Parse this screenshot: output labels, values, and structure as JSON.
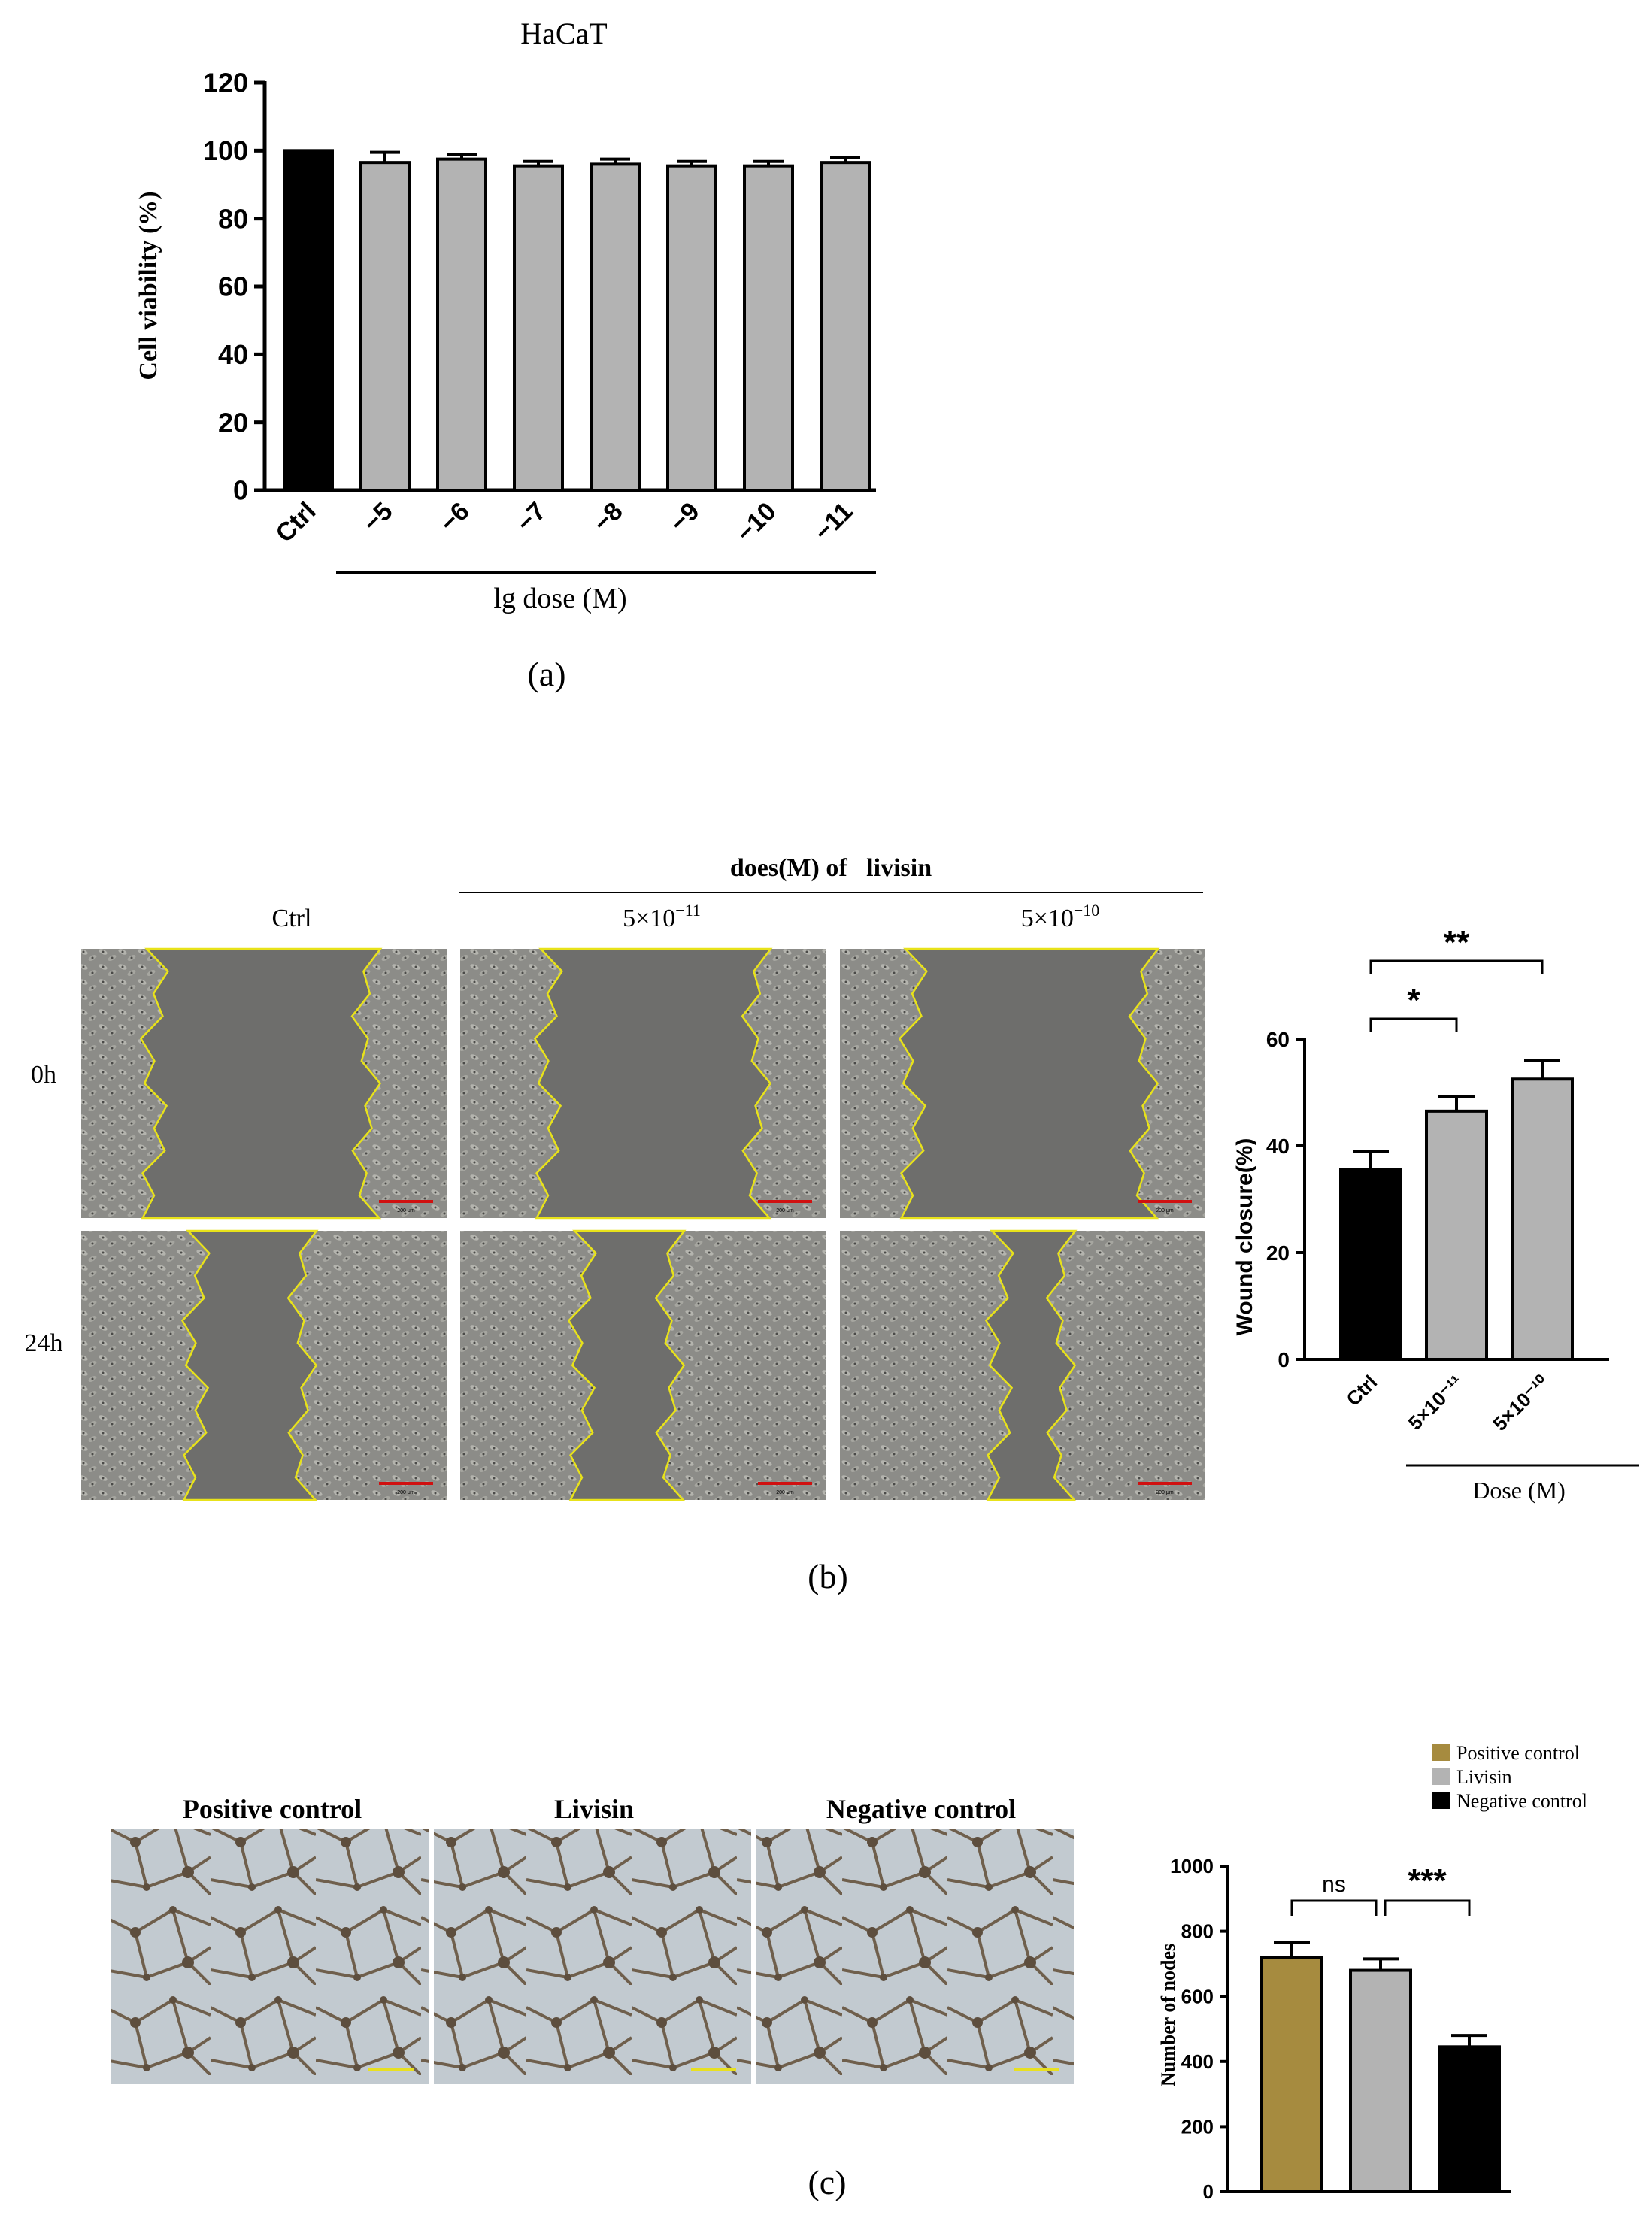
{
  "chart_data": [
    {
      "panel_label": "(a)",
      "type": "bar",
      "title": "HaCaT",
      "ylabel": "Cell viability (%)",
      "xlabel": "lg dose (M)",
      "categories": [
        "Ctrl",
        "−5",
        "−6",
        "−7",
        "−8",
        "−9",
        "−10",
        "−11"
      ],
      "values": [
        100,
        96.5,
        97.5,
        95.5,
        96,
        95.5,
        95.5,
        96.5
      ],
      "errors": [
        0,
        3,
        1.3,
        1.3,
        1.5,
        1.3,
        1.3,
        1.5
      ],
      "bar_colors": [
        "#000000",
        "#b3b3b3",
        "#b3b3b3",
        "#b3b3b3",
        "#b3b3b3",
        "#b3b3b3",
        "#b3b3b3",
        "#b3b3b3"
      ],
      "ylim": [
        0,
        120
      ],
      "yticks": [
        0,
        20,
        40,
        60,
        80,
        100,
        120
      ]
    },
    {
      "panel_label": "(b)",
      "type": "bar",
      "ylabel": "Wound closure(%)",
      "xlabel": "Dose (M)",
      "categories": [
        "Ctrl",
        "5×10⁻¹¹",
        "5×10⁻¹⁰"
      ],
      "values": [
        35.5,
        46.5,
        52.5
      ],
      "errors": [
        3.5,
        2.8,
        3.5
      ],
      "bar_colors": [
        "#000000",
        "#b3b3b3",
        "#b3b3b3"
      ],
      "ylim": [
        0,
        60
      ],
      "yticks": [
        0,
        20,
        40,
        60
      ],
      "significance": [
        {
          "from": 0,
          "to": 1,
          "label": "*"
        },
        {
          "from": 0,
          "to": 2,
          "label": "**"
        }
      ]
    },
    {
      "panel_label": "(c)",
      "type": "bar",
      "ylabel": "Number of nodes",
      "categories": [
        "Positive control",
        "Livisin",
        "Negative control"
      ],
      "values": [
        720,
        680,
        445
      ],
      "errors": [
        45,
        35,
        35
      ],
      "bar_colors": [
        "#a68b3f",
        "#b3b3b3",
        "#000000"
      ],
      "ylim": [
        0,
        1000
      ],
      "yticks": [
        0,
        200,
        400,
        600,
        800,
        1000
      ],
      "legend": [
        "Positive control",
        "Livisin",
        "Negative control"
      ],
      "legend_position": "top-right",
      "significance": [
        {
          "from": 0,
          "to": 1,
          "label": "ns"
        },
        {
          "from": 1,
          "to": 2,
          "label": "***"
        }
      ]
    }
  ],
  "panel_b_images": {
    "dose_header": "does(M) of   livisin",
    "columns": [
      "Ctrl",
      "5×10",
      "5×10"
    ],
    "column_exponents": [
      "",
      "−11",
      "−10"
    ],
    "rows": [
      "0h",
      "24h"
    ],
    "scale_bar_text": "200 μm"
  },
  "panel_c_images": {
    "columns": [
      "Positive control",
      "Livisin",
      "Negative control"
    ]
  },
  "colors": {
    "micrograph_gray": "#6e6e6c",
    "cell_layer": "#8a8a86",
    "wound_edge": "#e8e21a",
    "scale_bar_red": "#d01010",
    "tube_bg": "#c4ccd2",
    "tube_network": "#6a5a48",
    "scale_bar_yellow": "#e8e020"
  }
}
